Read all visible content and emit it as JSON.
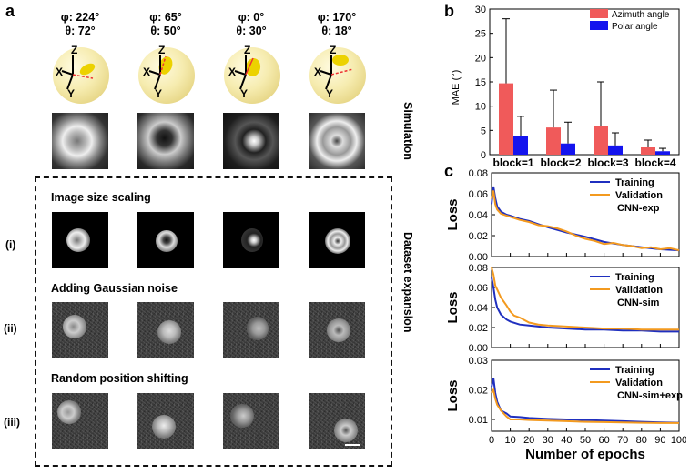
{
  "panel_letters": {
    "a": "a",
    "b": "b",
    "c": "c"
  },
  "orientations": [
    {
      "phi": "φ: 224°",
      "theta": "θ: 72°"
    },
    {
      "phi": "φ: 65°",
      "theta": "θ: 50°"
    },
    {
      "phi": "φ: 0°",
      "theta": "θ: 30°"
    },
    {
      "phi": "φ: 170°",
      "theta": "θ: 18°"
    }
  ],
  "axes_letters": {
    "x": "X",
    "y": "Y",
    "z": "Z"
  },
  "simulation_label": "Simulation",
  "dataset_expansion_label": "Dataset expansion",
  "steps": {
    "scaling": "Image size scaling",
    "noise": "Adding Gaussian noise",
    "shift": "Random position shifting"
  },
  "row_labels": {
    "i": "(i)",
    "ii": "(ii)",
    "iii": "(iii)"
  },
  "colors": {
    "azimuth": "#f05a5a",
    "polar": "#1414ee",
    "training": "#1f2fbf",
    "validation": "#f39a1f"
  },
  "chart_data": [
    {
      "type": "bar",
      "categories": [
        "block=1",
        "block=2",
        "block=3",
        "block=4"
      ],
      "series": [
        {
          "name": "Azimuth angle",
          "values": [
            14.7,
            5.6,
            5.9,
            1.5
          ],
          "errors": [
            13.3,
            7.7,
            9.1,
            1.5
          ]
        },
        {
          "name": "Polar angle",
          "values": [
            3.9,
            2.3,
            1.9,
            0.7
          ],
          "errors": [
            4.0,
            4.4,
            2.6,
            0.6
          ]
        }
      ],
      "ylabel": "MAE (°)",
      "ylim": [
        0,
        30
      ],
      "yticks": [
        "0",
        "5",
        "10",
        "15",
        "20",
        "25",
        "30"
      ],
      "legend": "top-right"
    },
    {
      "type": "line",
      "title": "CNN-exp",
      "ylabel": "Loss",
      "ylim": [
        0,
        0.08
      ],
      "yticks": [
        "0.00",
        "0.02",
        "0.04",
        "0.06",
        "0.08"
      ],
      "series": [
        {
          "name": "Training",
          "x": [
            0,
            1,
            2,
            3,
            5,
            8,
            10,
            15,
            20,
            25,
            30,
            40,
            50,
            60,
            70,
            80,
            90,
            100
          ],
          "values": [
            0.05,
            0.067,
            0.056,
            0.048,
            0.043,
            0.04,
            0.039,
            0.036,
            0.034,
            0.031,
            0.028,
            0.023,
            0.019,
            0.014,
            0.011,
            0.009,
            0.007,
            0.006
          ]
        },
        {
          "name": "Validation",
          "x": [
            0,
            1,
            2,
            3,
            5,
            8,
            10,
            15,
            20,
            25,
            30,
            35,
            40,
            45,
            50,
            55,
            60,
            65,
            70,
            75,
            80,
            85,
            90,
            95,
            100
          ],
          "values": [
            0.055,
            0.063,
            0.05,
            0.045,
            0.041,
            0.039,
            0.038,
            0.035,
            0.033,
            0.03,
            0.029,
            0.027,
            0.024,
            0.02,
            0.017,
            0.015,
            0.012,
            0.013,
            0.011,
            0.01,
            0.008,
            0.009,
            0.007,
            0.008,
            0.006
          ]
        }
      ],
      "legend": "top-right"
    },
    {
      "type": "line",
      "title": "CNN-sim",
      "ylabel": "Loss",
      "ylim": [
        0,
        0.08
      ],
      "yticks": [
        "0.00",
        "0.02",
        "0.04",
        "0.06",
        "0.08"
      ],
      "series": [
        {
          "name": "Training",
          "x": [
            0,
            1,
            2,
            3,
            5,
            8,
            10,
            15,
            20,
            30,
            40,
            50,
            60,
            70,
            80,
            90,
            100
          ],
          "values": [
            0.07,
            0.06,
            0.048,
            0.04,
            0.033,
            0.028,
            0.026,
            0.023,
            0.022,
            0.02,
            0.019,
            0.018,
            0.018,
            0.017,
            0.017,
            0.016,
            0.016
          ]
        },
        {
          "name": "Validation",
          "x": [
            0,
            1,
            2,
            3,
            5,
            8,
            10,
            12,
            15,
            20,
            25,
            30,
            40,
            50,
            60,
            70,
            80,
            90,
            100
          ],
          "values": [
            0.08,
            0.073,
            0.062,
            0.058,
            0.05,
            0.042,
            0.036,
            0.032,
            0.03,
            0.025,
            0.023,
            0.022,
            0.021,
            0.02,
            0.019,
            0.019,
            0.018,
            0.018,
            0.018
          ]
        }
      ],
      "legend": "top-right"
    },
    {
      "type": "line",
      "title": "CNN-sim+exp",
      "ylabel": "Loss",
      "xlabel": "Number of epochs",
      "ylim": [
        0.006,
        0.03
      ],
      "yticks": [
        "0.01",
        "0.02",
        "0.03"
      ],
      "xticks": [
        "0",
        "10",
        "20",
        "30",
        "40",
        "50",
        "60",
        "70",
        "80",
        "90",
        "100"
      ],
      "series": [
        {
          "name": "Training",
          "x": [
            0,
            1,
            2,
            3,
            5,
            8,
            10,
            15,
            20,
            30,
            40,
            50,
            60,
            70,
            80,
            90,
            100
          ],
          "values": [
            0.021,
            0.024,
            0.019,
            0.016,
            0.013,
            0.012,
            0.011,
            0.0108,
            0.0105,
            0.0102,
            0.01,
            0.0098,
            0.0096,
            0.0094,
            0.0092,
            0.009,
            0.0089
          ]
        },
        {
          "name": "Validation",
          "x": [
            0,
            1,
            2,
            3,
            5,
            8,
            10,
            15,
            20,
            30,
            40,
            50,
            60,
            70,
            80,
            90,
            100
          ],
          "values": [
            0.019,
            0.02,
            0.017,
            0.015,
            0.013,
            0.011,
            0.01,
            0.01,
            0.0098,
            0.0096,
            0.0094,
            0.0092,
            0.0091,
            0.009,
            0.0089,
            0.0088,
            0.0088
          ]
        }
      ],
      "legend": "top-right"
    }
  ]
}
